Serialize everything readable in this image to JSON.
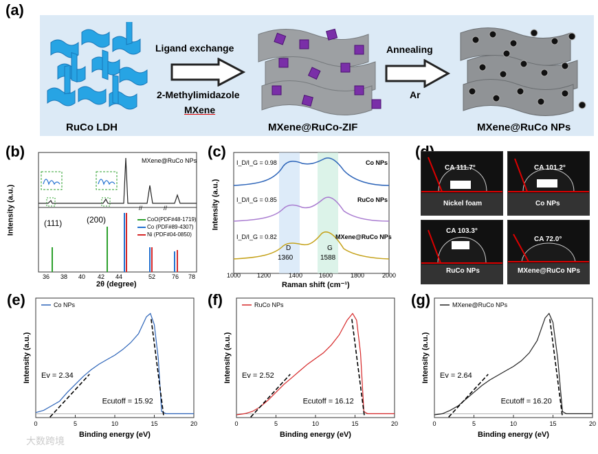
{
  "panel_a": {
    "label": "(a)",
    "stage1": "RuCo LDH",
    "arrow1_top": "Ligand exchange",
    "arrow1_bottom1": "2-Methylimidazole",
    "arrow1_bottom2": "MXene",
    "stage2": "MXene@RuCo-ZIF",
    "arrow2_top": "Annealing",
    "arrow2_bottom": "Ar",
    "stage3": "MXene@RuCo NPs"
  },
  "panel_b": {
    "label": "(b)",
    "sample": "MXene@RuCo NPs",
    "ylabel": "Intensity (a.u.)",
    "xlabel": "2θ (degree)",
    "xticks": [
      "36",
      "38",
      "40",
      "42",
      "44",
      "52",
      "76",
      "78"
    ],
    "peak1": "(111)",
    "peak2": "(200)",
    "legend": [
      {
        "label": "CoO(PDF#48-1719)",
        "color": "#2ca02c"
      },
      {
        "label": "Co   (PDF#89-4307)",
        "color": "#1f6fd0"
      },
      {
        "label": "Ni   (PDF#04-0850)",
        "color": "#d62728"
      }
    ]
  },
  "panel_c": {
    "label": "(c)",
    "ylabel": "Intensity (a.u.)",
    "xlabel": "Raman shift (cm⁻¹)",
    "xticks": [
      "1000",
      "1200",
      "1400",
      "1600",
      "1800",
      "2000"
    ],
    "ratio_label": "I_D/I_G",
    "series": [
      {
        "name": "Co NPs",
        "ratio": "0.98",
        "color": "#2b63b8"
      },
      {
        "name": "RuCo NPs",
        "ratio": "0.85",
        "color": "#a87ad0"
      },
      {
        "name": "MXene@RuCo NPs",
        "ratio": "0.82",
        "color": "#c5a21a"
      }
    ],
    "band_d": "D",
    "band_d_val": "1360",
    "band_g": "G",
    "band_g_val": "1588"
  },
  "panel_d": {
    "label": "(d)",
    "items": [
      {
        "ca": "CA 111.7°",
        "name": "Nickel foam"
      },
      {
        "ca": "CA 101.2°",
        "name": "Co NPs"
      },
      {
        "ca": "CA 103.3°",
        "name": "RuCo NPs"
      },
      {
        "ca": "CA 72.0°",
        "name": "MXene@RuCo NPs"
      }
    ]
  },
  "chart_data": [
    {
      "type": "line",
      "panel": "(e)",
      "legend": "Co NPs",
      "color": "#2b63b8",
      "xlabel": "Binding energy (eV)",
      "ylabel": "Intensity (a.u.)",
      "xlim": [
        0,
        20
      ],
      "xticks": [
        0,
        5,
        10,
        15,
        20
      ],
      "ev_label": "Ev = 2.34",
      "ecut_label": "Ecutoff = 15.92",
      "x": [
        0,
        1,
        2,
        3,
        4,
        5,
        6,
        7,
        8,
        9,
        10,
        11,
        12,
        13,
        14,
        14.5,
        15,
        15.5,
        15.92,
        16.5,
        20
      ],
      "y": [
        0.02,
        0.04,
        0.08,
        0.12,
        0.2,
        0.27,
        0.34,
        0.4,
        0.45,
        0.49,
        0.53,
        0.58,
        0.64,
        0.72,
        0.87,
        0.9,
        0.8,
        0.5,
        0.03,
        0.01,
        0.01
      ]
    },
    {
      "type": "line",
      "panel": "(f)",
      "legend": "RuCo NPs",
      "color": "#d62728",
      "xlabel": "Binding energy (eV)",
      "ylabel": "Intensity (a.u.)",
      "xlim": [
        0,
        20
      ],
      "xticks": [
        0,
        5,
        10,
        15,
        20
      ],
      "ev_label": "Ev = 2.52",
      "ecut_label": "Ecutoff = 16.12",
      "x": [
        0,
        1,
        2,
        3,
        4,
        5,
        6,
        7,
        8,
        9,
        10,
        11,
        12,
        13,
        14,
        14.7,
        15.2,
        15.7,
        16.12,
        16.6,
        20
      ],
      "y": [
        0.0,
        0.01,
        0.03,
        0.07,
        0.13,
        0.2,
        0.27,
        0.33,
        0.39,
        0.45,
        0.5,
        0.55,
        0.62,
        0.71,
        0.84,
        0.9,
        0.84,
        0.55,
        0.03,
        0.01,
        0.01
      ]
    },
    {
      "type": "line",
      "panel": "(g)",
      "legend": "MXene@RuCo NPs",
      "color": "#222222",
      "xlabel": "Binding energy (eV)",
      "ylabel": "Intensity (a.u.)",
      "xlim": [
        0,
        20
      ],
      "xticks": [
        0,
        5,
        10,
        15,
        20
      ],
      "ev_label": "Ev = 2.64",
      "ecut_label": "Ecutoff = 16.20",
      "x": [
        0,
        1,
        2,
        3,
        4,
        5,
        6,
        7,
        8,
        9,
        10,
        11,
        12,
        13,
        14,
        14.5,
        15,
        15.6,
        16.2,
        16.7,
        20
      ],
      "y": [
        0.0,
        0.01,
        0.04,
        0.08,
        0.14,
        0.2,
        0.26,
        0.31,
        0.35,
        0.39,
        0.43,
        0.48,
        0.55,
        0.66,
        0.86,
        0.9,
        0.82,
        0.5,
        0.03,
        0.01,
        0.01
      ]
    }
  ],
  "watermark": "大数跨境"
}
